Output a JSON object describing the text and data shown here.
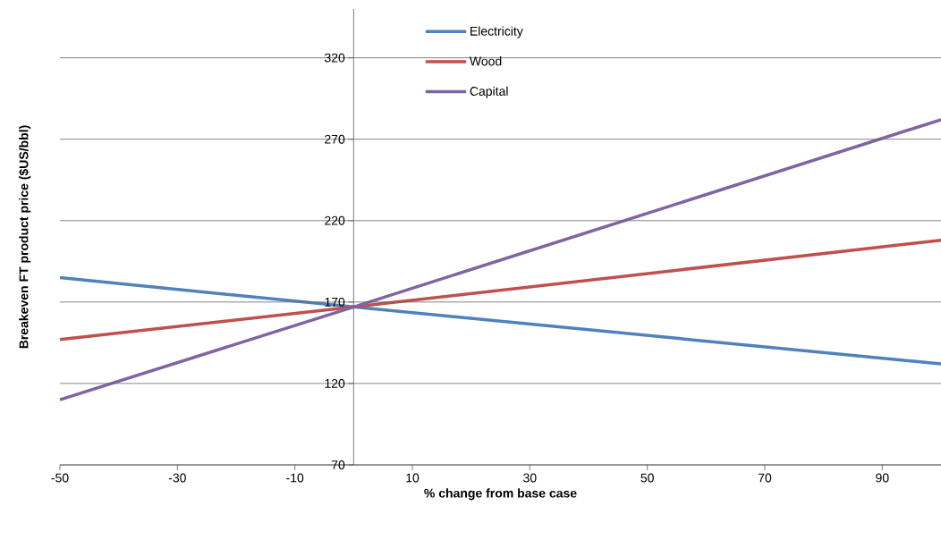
{
  "chart_data": {
    "type": "line",
    "xlabel": "% change from base case",
    "ylabel": "Breakeven FT product price ($US/bbl)",
    "x": [
      -50,
      0,
      100
    ],
    "series": [
      {
        "name": "Electricity",
        "color": "#4f81bd",
        "values": [
          185,
          167,
          132
        ]
      },
      {
        "name": "Wood",
        "color": "#c0504d",
        "values": [
          147,
          167,
          208
        ]
      },
      {
        "name": "Capital",
        "color": "#8064a2",
        "values": [
          110,
          167,
          282
        ]
      }
    ],
    "xlim": [
      -50,
      100
    ],
    "ylim": [
      70,
      350
    ],
    "xticks": [
      -50,
      -30,
      -10,
      10,
      30,
      50,
      70,
      90
    ],
    "yticks": [
      70,
      120,
      170,
      220,
      270,
      320
    ],
    "grid": "y",
    "legend": "top",
    "marker": "none",
    "line_style": "solid"
  }
}
